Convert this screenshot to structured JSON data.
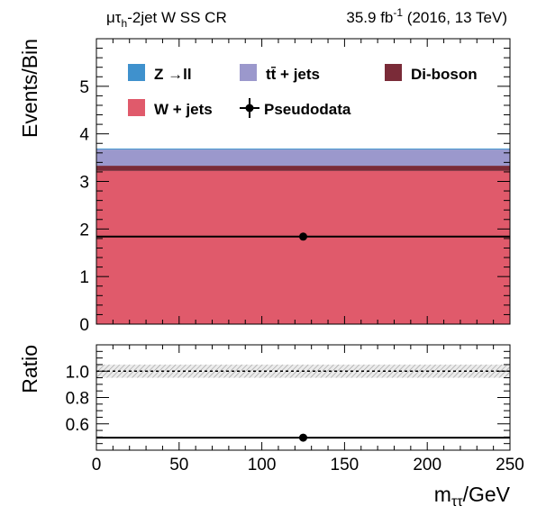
{
  "chart_data": [
    {
      "type": "bar",
      "panel": "main",
      "stacked": true,
      "header": {
        "left_main": "μτ",
        "left_sub": "h",
        "left_rest": "-2jet W SS CR",
        "right_pre": "35.9 fb",
        "right_sup": "-1",
        "right_post": " (2016, 13 TeV)"
      },
      "ylabel": "Events/Bin",
      "ylim": [
        0,
        6
      ],
      "xlim": [
        0,
        250
      ],
      "yticks": [
        0,
        1,
        2,
        3,
        4,
        5
      ],
      "bin": [
        0,
        250
      ],
      "series": [
        {
          "name": "W + jets",
          "value": 3.22,
          "color": "#e05a6b"
        },
        {
          "name": "Di-boson",
          "value": 0.11,
          "color": "#7a2b38"
        },
        {
          "name": "tt̄ + jets",
          "value": 0.34,
          "color": "#9b98cc"
        },
        {
          "name": "Z → ll",
          "value": 0.02,
          "color": "#3f91cd"
        }
      ],
      "pseudodata": {
        "name": "Pseudodata",
        "x": 125,
        "y": 1.84,
        "xerr": [
          0,
          250
        ]
      },
      "legend": {
        "placement": "top",
        "entries": [
          {
            "label": "Z  →ll",
            "kind": "box",
            "color": "#3f91cd"
          },
          {
            "label": "tt̄ + jets",
            "kind": "box",
            "color": "#9b98cc"
          },
          {
            "label": "Di-boson",
            "kind": "box",
            "color": "#7a2b38"
          },
          {
            "label": "W + jets",
            "kind": "box",
            "color": "#e05a6b"
          },
          {
            "label": "Pseudodata",
            "kind": "marker",
            "color": "#000000"
          }
        ]
      }
    },
    {
      "type": "scatter",
      "panel": "ratio",
      "ylabel": "Ratio",
      "xlabel_main": "m",
      "xlabel_sub": "ττ",
      "xlabel_rest": "/GeV",
      "ylim": [
        0.4,
        1.2
      ],
      "xlim": [
        0,
        250
      ],
      "yticks": [
        "0.6",
        "0.8",
        "1.0"
      ],
      "xticks": [
        "0",
        "50",
        "100",
        "150",
        "200",
        "250"
      ],
      "reference": 1.0,
      "uncertainty_band": [
        0.95,
        1.05
      ],
      "points": [
        {
          "x": 125,
          "y": 0.495,
          "xerr": [
            0,
            250
          ]
        }
      ]
    }
  ]
}
